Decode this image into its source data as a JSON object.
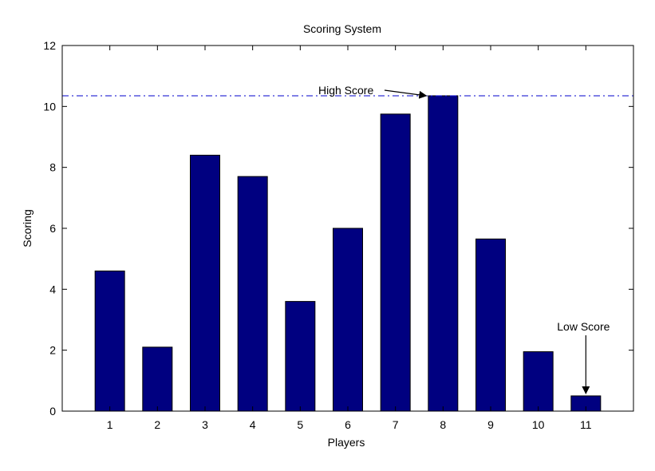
{
  "chart_data": {
    "type": "bar",
    "title": "Scoring System",
    "xlabel": "Players",
    "ylabel": "Scoring",
    "categories": [
      "1",
      "2",
      "3",
      "4",
      "5",
      "6",
      "7",
      "8",
      "9",
      "10",
      "11"
    ],
    "values": [
      4.6,
      2.1,
      8.4,
      7.7,
      3.6,
      6.0,
      9.75,
      10.35,
      5.65,
      1.95,
      0.5
    ],
    "ylim": [
      0,
      12
    ],
    "yticks": [
      "0",
      "2",
      "4",
      "6",
      "8",
      "10",
      "12"
    ],
    "grid": false,
    "bar_color": "#000080",
    "reference_line": {
      "value": 10.35,
      "color": "#0000cc",
      "style": "dash-dot"
    },
    "annotations": [
      {
        "text": "High Score",
        "category_index": 7,
        "value": 10.35
      },
      {
        "text": "Low Score",
        "category_index": 10,
        "value": 0.5
      }
    ]
  }
}
